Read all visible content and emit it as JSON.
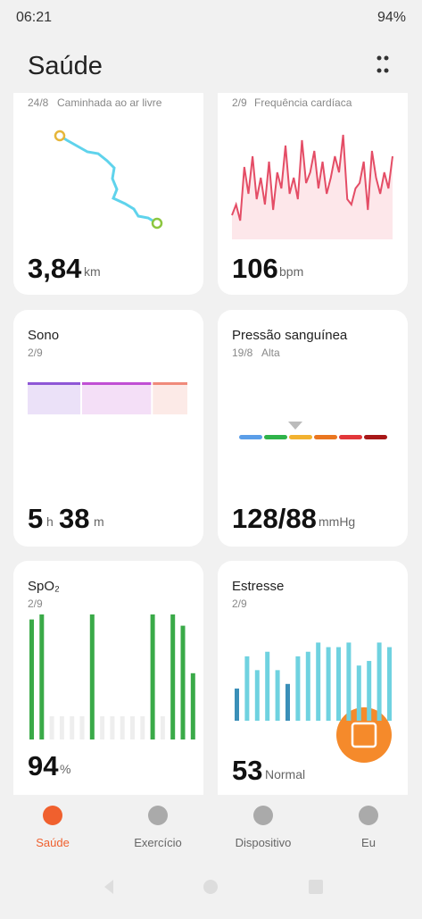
{
  "status": {
    "time": "06:21",
    "battery": "94%"
  },
  "header": {
    "title": "Saúde"
  },
  "walk": {
    "date": "24/8",
    "subtitle": "Caminhada ao ar livre",
    "value": "3,84",
    "unit": "km"
  },
  "heart": {
    "date": "2/9",
    "subtitle": "Frequência cardíaca",
    "value": "106",
    "unit": "bpm",
    "ylim": [
      0,
      100
    ],
    "values": [
      20,
      30,
      15,
      65,
      40,
      75,
      35,
      55,
      30,
      70,
      25,
      60,
      45,
      85,
      40,
      55,
      35,
      90,
      50,
      60,
      80,
      45,
      70,
      40,
      55,
      75,
      60,
      95,
      35,
      30,
      45,
      50,
      70,
      25,
      80,
      55,
      40,
      60,
      45,
      75
    ]
  },
  "sleep": {
    "title": "Sono",
    "date": "2/9",
    "hours": "5",
    "hours_unit": "h",
    "minutes": "38",
    "minutes_unit": "m",
    "segments": [
      60,
      78,
      40
    ]
  },
  "pressure": {
    "title": "Pressão sanguínea",
    "date": "19/8",
    "subtitle": "Alta",
    "value": "128/88",
    "unit": "mmHg"
  },
  "spo2": {
    "title": "SpO₂",
    "date": "2/9",
    "value": "94",
    "unit": "%",
    "ylim": [
      0,
      100
    ],
    "values": [
      96,
      100,
      null,
      null,
      null,
      null,
      100,
      null,
      null,
      null,
      null,
      null,
      100,
      null,
      100,
      91,
      53
    ]
  },
  "stress": {
    "title": "Estresse",
    "date": "2/9",
    "value": "53",
    "unit": "Normal",
    "ylim": [
      0,
      100
    ],
    "values": [
      35,
      70,
      55,
      75,
      55,
      40,
      70,
      75,
      85,
      80,
      80,
      85,
      60,
      65,
      85,
      80
    ]
  },
  "nav": [
    {
      "label": "Saúde"
    },
    {
      "label": "Exercício"
    },
    {
      "label": "Dispositivo"
    },
    {
      "label": "Eu"
    }
  ]
}
